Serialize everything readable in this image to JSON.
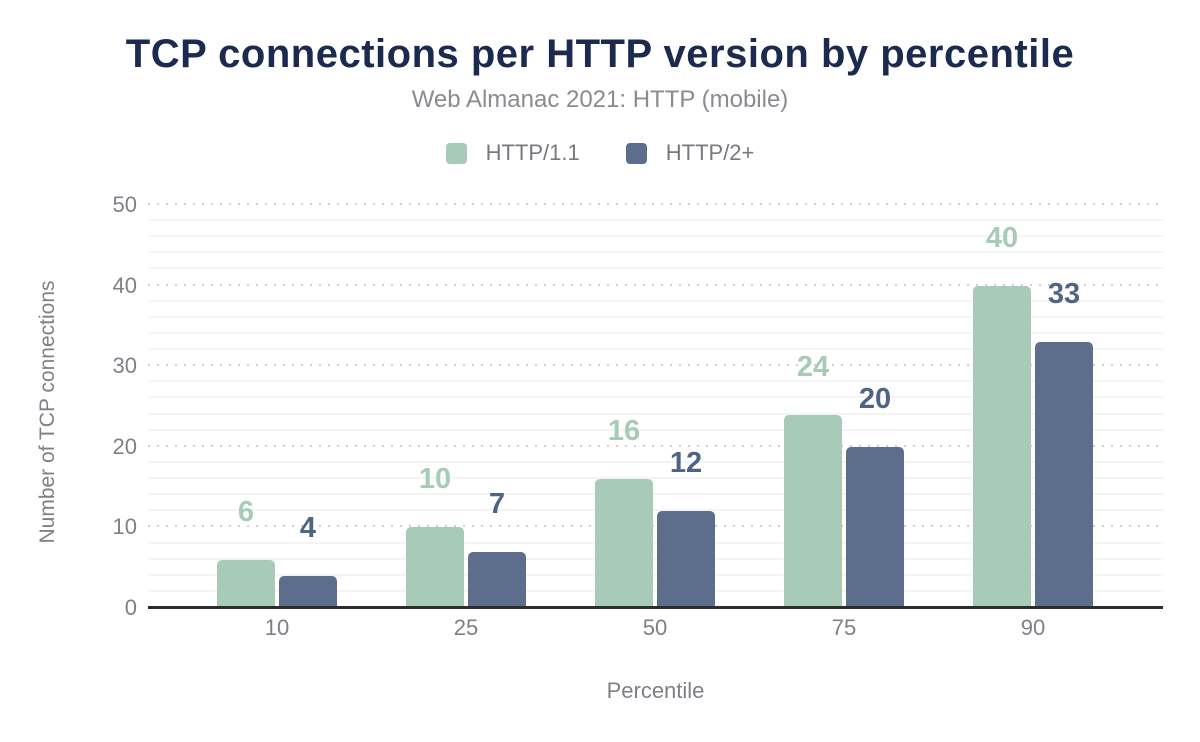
{
  "chart_data": {
    "type": "bar",
    "title": "TCP connections per HTTP version by percentile",
    "subtitle": "Web Almanac 2021: HTTP (mobile)",
    "xlabel": "Percentile",
    "ylabel": "Number of TCP connections",
    "categories": [
      "10",
      "25",
      "50",
      "75",
      "90"
    ],
    "series": [
      {
        "name": "HTTP/1.1",
        "color": "#a8cab8",
        "label_color": "#a6cbb7",
        "values": [
          6,
          10,
          16,
          24,
          40
        ]
      },
      {
        "name": "HTTP/2+",
        "color": "#5d6e8c",
        "label_color": "#4e6386",
        "values": [
          4,
          7,
          12,
          20,
          33
        ]
      }
    ],
    "ylim": [
      0,
      50
    ],
    "yticks": [
      0,
      10,
      20,
      30,
      40,
      50
    ],
    "minor_gridline_step": 2,
    "grid": "horizontal",
    "legend_position": "top",
    "data_labels": true,
    "colors": {
      "background": "#ffffff",
      "title": "#1b2a4e",
      "subtitle": "#888c91",
      "axis_text": "#7d8187",
      "legend_text": "#76797e",
      "axis_line": "#2d2d2d",
      "major_grid": "#cfcfcf",
      "minor_grid": "#f4f4f4"
    }
  }
}
